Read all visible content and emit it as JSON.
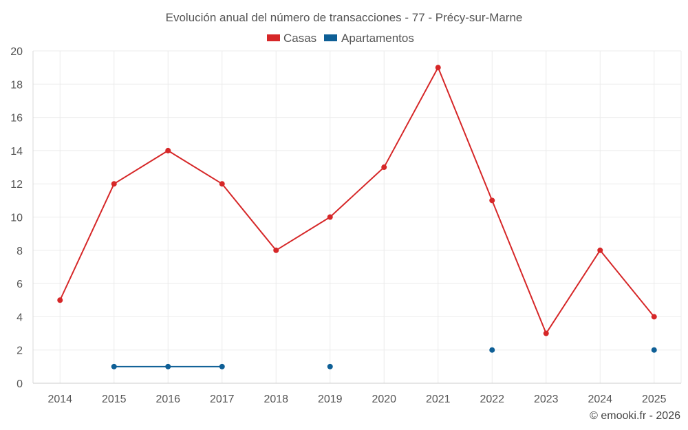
{
  "chart_data": {
    "type": "line",
    "title": "Evolución anual del número de transacciones - 77 - Précy-sur-Marne",
    "categories": [
      "2014",
      "2015",
      "2016",
      "2017",
      "2018",
      "2019",
      "2020",
      "2021",
      "2022",
      "2023",
      "2024",
      "2025"
    ],
    "ylim": [
      0,
      20
    ],
    "yticks": [
      0,
      2,
      4,
      6,
      8,
      10,
      12,
      14,
      16,
      18,
      20
    ],
    "grid": true,
    "legend_position": "top-center",
    "series": [
      {
        "name": "Casas",
        "color": "#d62728",
        "values": [
          5,
          12,
          14,
          12,
          8,
          10,
          13,
          19,
          11,
          3,
          8,
          4
        ]
      },
      {
        "name": "Apartamentos",
        "color": "#0e5f96",
        "values": [
          null,
          1,
          1,
          1,
          null,
          1,
          null,
          null,
          2,
          null,
          null,
          2
        ]
      }
    ]
  },
  "credit": "© emooki.fr - 2026"
}
